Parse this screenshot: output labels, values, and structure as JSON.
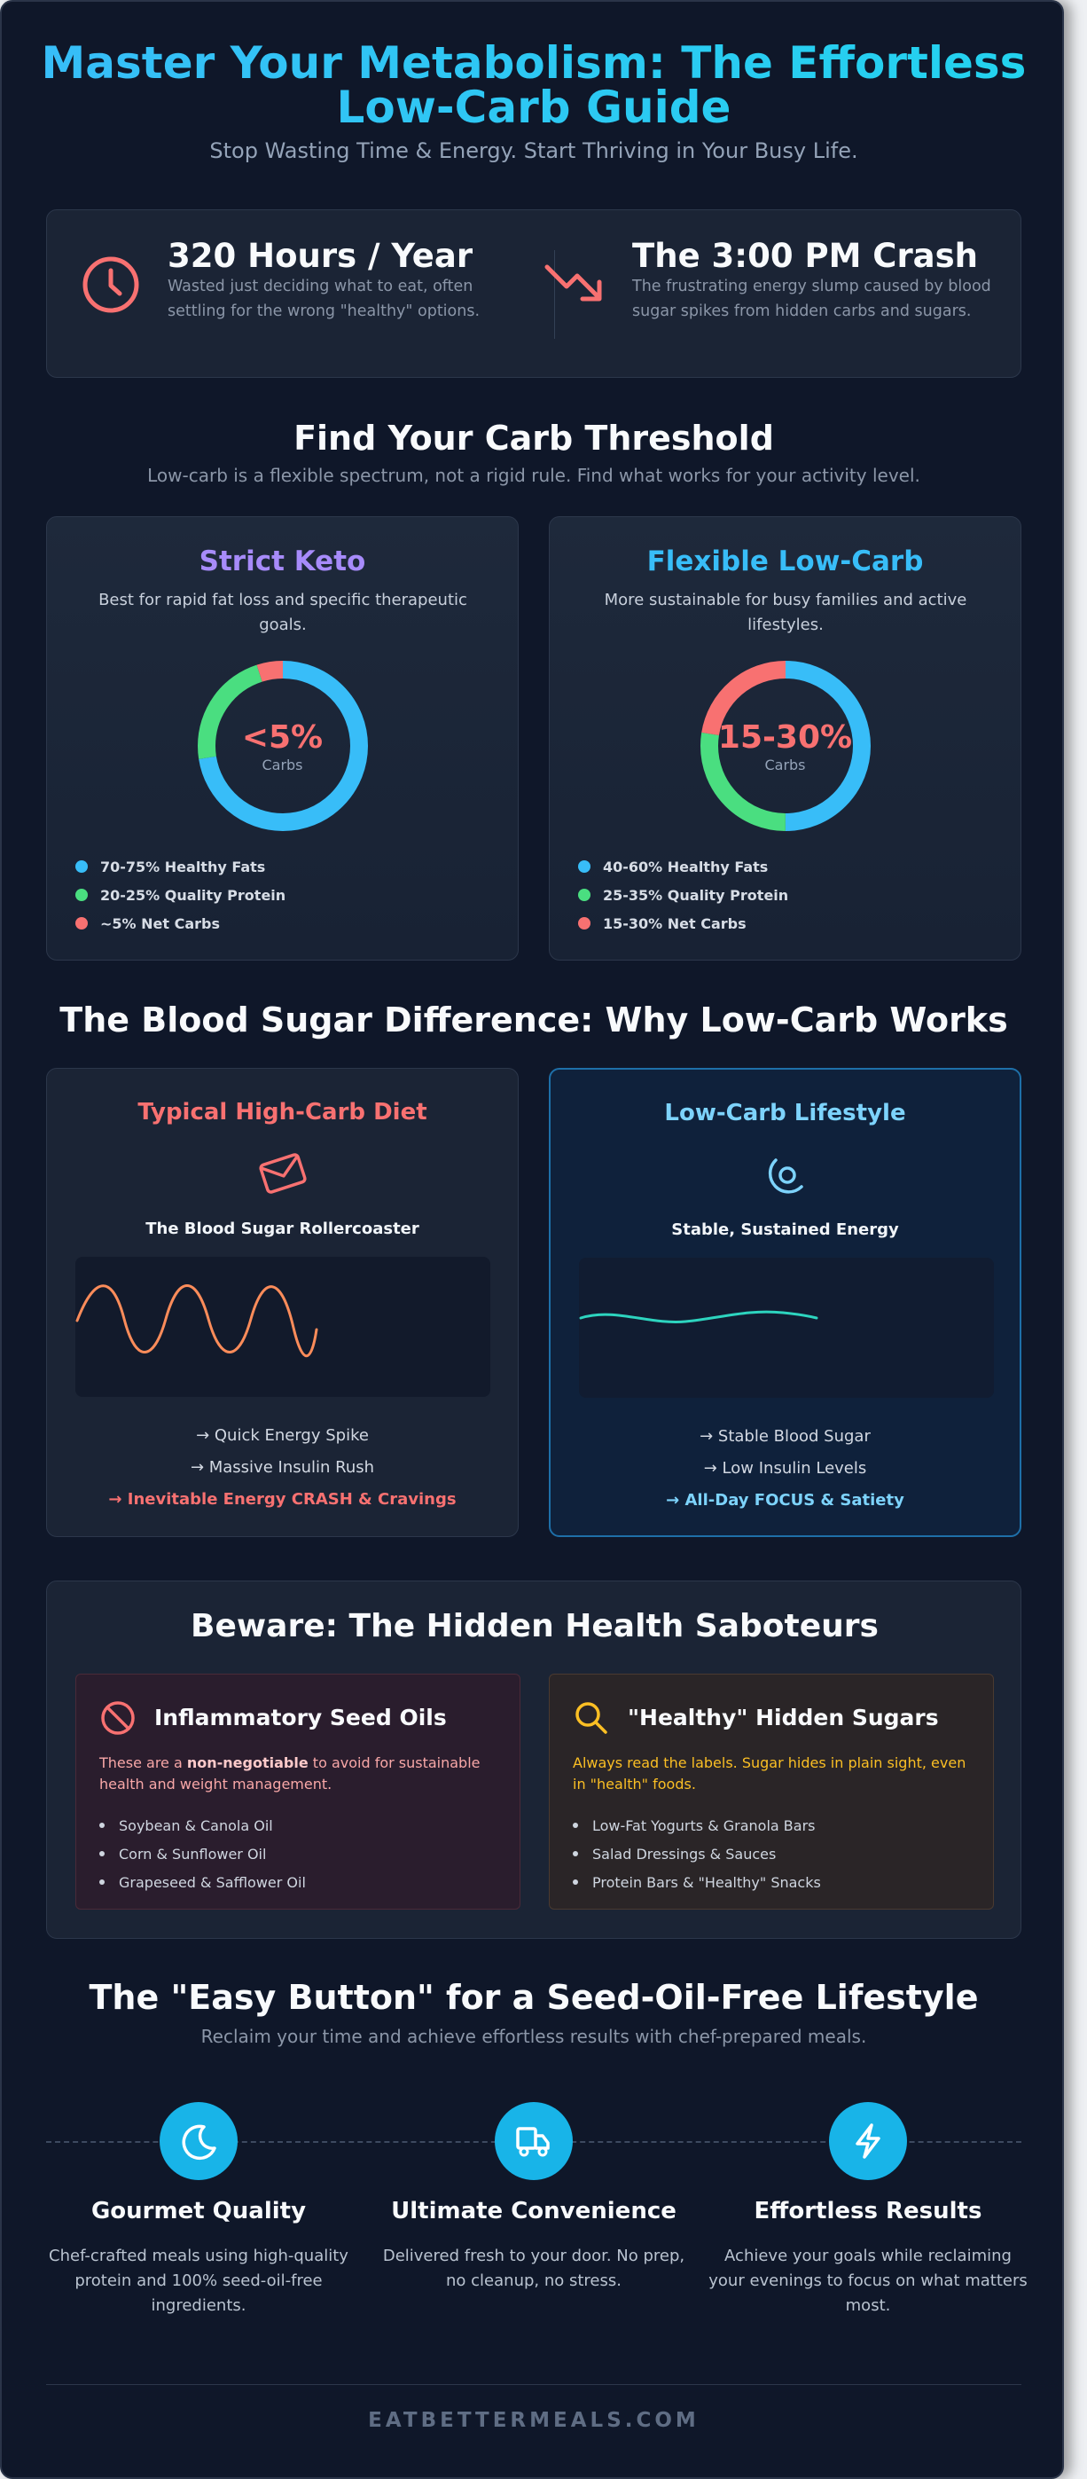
{
  "header": {
    "title": "Master Your Metabolism: The Effortless Low-Carb Guide",
    "subtitle": "Stop Wasting Time & Energy. Start Thriving in Your Busy Life."
  },
  "stats": [
    {
      "icon": "clock-icon",
      "headline": "320 Hours / Year",
      "text": "Wasted just deciding what to eat, often settling for the wrong \"healthy\" options."
    },
    {
      "icon": "trending-down-icon",
      "headline": "The 3:00 PM Crash",
      "text": "The frustrating energy slump caused by blood sugar spikes from hidden carbs and sugars."
    }
  ],
  "threshold": {
    "title": "Find Your Carb Threshold",
    "subtitle": "Low-carb is a flexible spectrum, not a rigid rule. Find what works for your activity level.",
    "cards": [
      {
        "title": "Strict Keto",
        "title_color": "#a78bfa",
        "description": "Best for rapid fat loss and specific therapeutic goals.",
        "donut_value": "<5%",
        "donut_label": "Carbs",
        "segments": [
          {
            "label": "70-75% Healthy Fats",
            "color": "#38bdf8",
            "share": 0.725
          },
          {
            "label": "20-25% Quality Protein",
            "color": "#4ade80",
            "share": 0.225
          },
          {
            "label": "~5% Net Carbs",
            "color": "#f87171",
            "share": 0.05
          }
        ]
      },
      {
        "title": "Flexible Low-Carb",
        "title_color": "#38bdf8",
        "description": "More sustainable for busy families and active lifestyles.",
        "donut_value": "15-30%",
        "donut_label": "Carbs",
        "segments": [
          {
            "label": "40-60% Healthy Fats",
            "color": "#38bdf8",
            "share": 0.5
          },
          {
            "label": "25-35% Quality Protein",
            "color": "#4ade80",
            "share": 0.275
          },
          {
            "label": "15-30% Net Carbs",
            "color": "#f87171",
            "share": 0.225
          }
        ]
      }
    ]
  },
  "blood_sugar": {
    "title": "The Blood Sugar Difference: Why Low-Carb Works",
    "high_carb": {
      "title": "Typical High-Carb Diet",
      "icon": "envelope-icon",
      "subtitle": "The Blood Sugar Rollercoaster",
      "lines": [
        "→ Quick Energy Spike",
        "→ Massive Insulin Rush"
      ],
      "emphasis": "→ Inevitable Energy CRASH & Cravings",
      "color": "#f87171",
      "line_color": "#fb8c5a"
    },
    "low_carb": {
      "title": "Low-Carb Lifestyle",
      "icon": "steady-orbit-icon",
      "subtitle": "Stable, Sustained Energy",
      "lines": [
        "→ Stable Blood Sugar",
        "→ Low Insulin Levels"
      ],
      "emphasis": "→ All-Day FOCUS & Satiety",
      "color": "#7dd3fc",
      "line_color": "#2dd4bf"
    }
  },
  "saboteurs": {
    "title": "Beware: The Hidden Health Saboteurs",
    "seed_oils": {
      "icon": "ban-icon",
      "title": "Inflammatory Seed Oils",
      "desc_pre": "These are a ",
      "desc_strong": "non-negotiable",
      "desc_post": " to avoid for sustainable health and weight management.",
      "items": [
        "Soybean & Canola Oil",
        "Corn & Sunflower Oil",
        "Grapeseed & Safflower Oil"
      ]
    },
    "hidden_sugars": {
      "icon": "search-icon",
      "title": "\"Healthy\" Hidden Sugars",
      "desc": "Always read the labels. Sugar hides in plain sight, even in \"health\" foods.",
      "items": [
        "Low-Fat Yogurts & Granola Bars",
        "Salad Dressings & Sauces",
        "Protein Bars & \"Healthy\" Snacks"
      ]
    }
  },
  "easy": {
    "title": "The \"Easy Button\" for a Seed-Oil-Free Lifestyle",
    "subtitle": "Reclaim your time and achieve effortless results with chef-prepared meals.",
    "features": [
      {
        "icon": "moon-icon",
        "title": "Gourmet Quality",
        "text": "Chef-crafted meals using high-quality protein and 100% seed-oil-free ingredients."
      },
      {
        "icon": "delivery-truck-icon",
        "title": "Ultimate Convenience",
        "text": "Delivered fresh to your door. No prep, no cleanup, no stress."
      },
      {
        "icon": "lightning-icon",
        "title": "Effortless Results",
        "text": "Achieve your goals while reclaiming your evenings to focus on what matters most."
      }
    ]
  },
  "footer": {
    "text": "EATBETTERMEALS.COM"
  }
}
